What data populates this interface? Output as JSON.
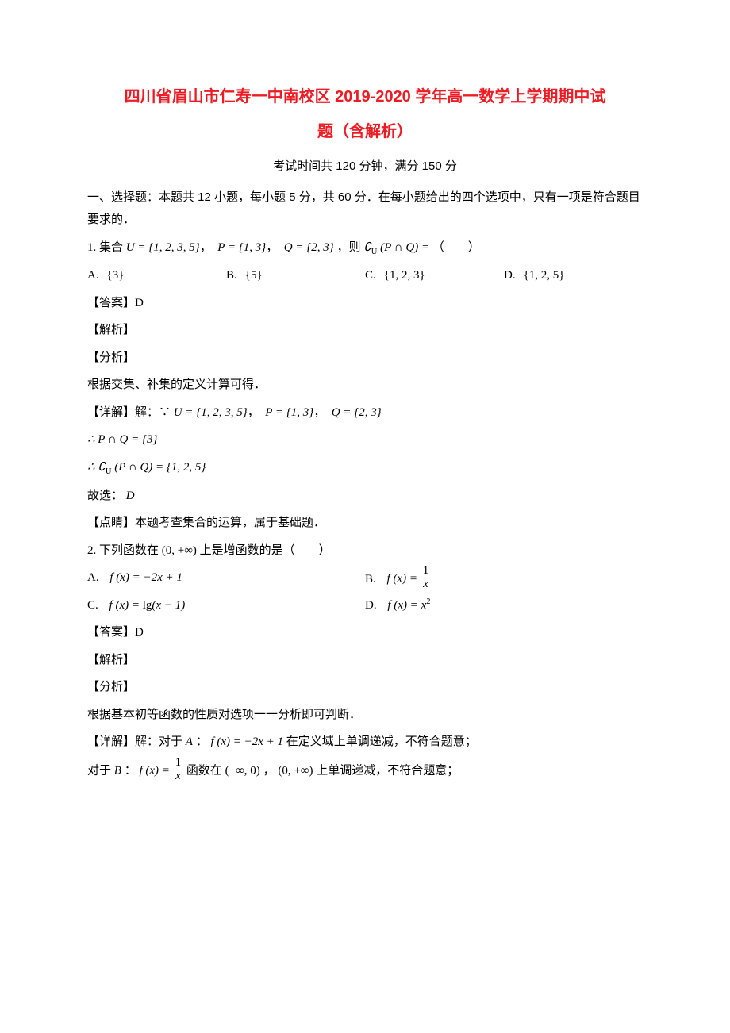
{
  "title_line1": "四川省眉山市仁寿一中南校区 2019-2020 学年高一数学上学期期中试",
  "title_line2": "题（含解析）",
  "exam_info": "考试时间共 120 分钟，满分 150 分",
  "section1": "一、选择题：本题共 12 小题，每小题 5 分，共 60 分．在每小题给出的四个选项中，只有一项是符合题目要求的．",
  "q1": {
    "stem_prefix": "1. 集合",
    "U": "U = {1, 2, 3, 5}",
    "P": "P = {1, 3}",
    "Q": "Q = {2, 3}",
    "stem_mid": "，则",
    "expr": "∁U (P ∩ Q) =",
    "stem_suffix": "（　　）",
    "optA_label": "A.",
    "optA": "{3}",
    "optB_label": "B.",
    "optB": "{5}",
    "optC_label": "C.",
    "optC": "{1, 2, 3}",
    "optD_label": "D.",
    "optD": "{1, 2, 5}",
    "answer_label": "【答案】D",
    "jiexi": "【解析】",
    "fenxi": "【分析】",
    "fenxi_text": "根据交集、补集的定义计算可得．",
    "detail_label": "【详解】解：∵",
    "detail_U": "U = {1, 2, 3, 5}",
    "detail_P": "P = {1, 3}",
    "detail_Q": "Q = {2, 3}",
    "step1": "∴ P ∩ Q = {3}",
    "step2": "∴ ∁U (P ∩ Q) = {1, 2, 5}",
    "conclusion": "故选：",
    "conclusion_ans": "D",
    "dianxing": "【点睛】本题考查集合的运算，属于基础题．"
  },
  "q2": {
    "stem": "2. 下列函数在",
    "interval": "(0, +∞)",
    "stem_suffix": "上是增函数的是（　　）",
    "optA_label": "A.",
    "optA": "f (x) = −2x + 1",
    "optB_label": "B.",
    "optB_lhs": "f (x) = ",
    "optC_label": "C.",
    "optC": "f (x) = lg(x − 1)",
    "optD_label": "D.",
    "optD": "f (x) = x²",
    "answer_label": "【答案】D",
    "jiexi": "【解析】",
    "fenxi": "【分析】",
    "fenxi_text": "根据基本初等函数的性质对选项一一分析即可判断．",
    "detail_label": "【详解】解：对于",
    "detail_A_label": "A",
    "detail_A_colon": "：",
    "detail_A_fx": "f (x) = −2x + 1",
    "detail_A_text": "在定义域上单调递减，不符合题意；",
    "detail_B_prefix": "对于",
    "detail_B_label": "B",
    "detail_B_colon": "：",
    "detail_B_fx_lhs": "f (x) = ",
    "detail_B_mid": "函数在",
    "detail_B_int1": "(−∞, 0)",
    "detail_B_comma": "，",
    "detail_B_int2": "(0, +∞)",
    "detail_B_text": "上单调递减，不符合题意；"
  }
}
